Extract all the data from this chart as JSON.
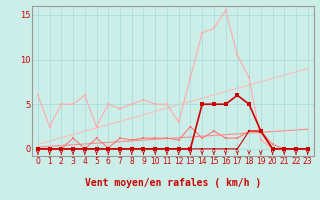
{
  "xlabel": "Vent moyen/en rafales ( km/h )",
  "background_color": "#cceee8",
  "grid_color": "#aadddd",
  "xlim": [
    -0.5,
    23.5
  ],
  "ylim": [
    -0.8,
    16
  ],
  "yticks": [
    0,
    5,
    10,
    15
  ],
  "xticks": [
    0,
    1,
    2,
    3,
    4,
    5,
    6,
    7,
    8,
    9,
    10,
    11,
    12,
    13,
    14,
    15,
    16,
    17,
    18,
    19,
    20,
    21,
    22,
    23
  ],
  "series": [
    {
      "x": [
        0,
        1,
        2,
        3,
        4,
        5,
        6,
        7,
        8,
        9,
        10,
        11,
        12,
        13,
        14,
        15,
        16,
        17,
        18,
        19,
        20,
        21,
        22,
        23
      ],
      "y": [
        6,
        2.5,
        5,
        5,
        6,
        2.5,
        5,
        4.5,
        5,
        5.5,
        5,
        5,
        3,
        8,
        13,
        13.5,
        15.5,
        10.5,
        8,
        1,
        0,
        0,
        0,
        0
      ],
      "color": "#ffaaaa",
      "lw": 0.8,
      "marker": "s",
      "ms": 1.8,
      "zorder": 2
    },
    {
      "x": [
        0,
        1,
        2,
        3,
        4,
        5,
        6,
        7,
        8,
        9,
        10,
        11,
        12,
        13,
        14,
        15,
        16,
        17,
        18,
        19,
        20,
        21,
        22,
        23
      ],
      "y": [
        0,
        0,
        0,
        1.2,
        0,
        1.2,
        0.1,
        1.2,
        1.0,
        1.2,
        1.2,
        1.2,
        1.0,
        2.5,
        1.2,
        2.0,
        1.2,
        1.2,
        2.0,
        2.0,
        0.5,
        0,
        0,
        0
      ],
      "color": "#ff7777",
      "lw": 0.8,
      "marker": "s",
      "ms": 1.8,
      "zorder": 3
    },
    {
      "x": [
        0,
        1,
        2,
        3,
        4,
        5,
        6,
        7,
        8,
        9,
        10,
        11,
        12,
        13,
        14,
        15,
        16,
        17,
        18,
        19,
        20,
        21,
        22,
        23
      ],
      "y": [
        0,
        0,
        0,
        0,
        0,
        0,
        0,
        0,
        0,
        0,
        0,
        0,
        0,
        0,
        5,
        5,
        5,
        6,
        5,
        2,
        0,
        0,
        0,
        0
      ],
      "color": "#cc0000",
      "lw": 1.2,
      "marker": "s",
      "ms": 2.5,
      "zorder": 5
    },
    {
      "x": [
        0,
        1,
        2,
        3,
        4,
        5,
        6,
        7,
        8,
        9,
        10,
        11,
        12,
        13,
        14,
        15,
        16,
        17,
        18,
        19,
        20,
        21,
        22,
        23
      ],
      "y": [
        0,
        0,
        0,
        0,
        0,
        0,
        0,
        0,
        0,
        0,
        0,
        0,
        0,
        0,
        0,
        0,
        0,
        0,
        2,
        2,
        0,
        0,
        0,
        0
      ],
      "color": "#cc0000",
      "lw": 0.8,
      "marker": "s",
      "ms": 2.0,
      "zorder": 4
    }
  ],
  "trend_lines": [
    {
      "x": [
        0,
        23
      ],
      "y": [
        0.5,
        9.0
      ],
      "color": "#ffbbbb",
      "lw": 0.8,
      "zorder": 1
    },
    {
      "x": [
        0,
        23
      ],
      "y": [
        0.2,
        2.2
      ],
      "color": "#ff8888",
      "lw": 0.8,
      "zorder": 1
    }
  ],
  "arrow_color": "#cc0000",
  "xlabel_color": "#cc0000",
  "xlabel_fontsize": 7,
  "tick_color": "#cc0000",
  "tick_fontsize": 5.5
}
